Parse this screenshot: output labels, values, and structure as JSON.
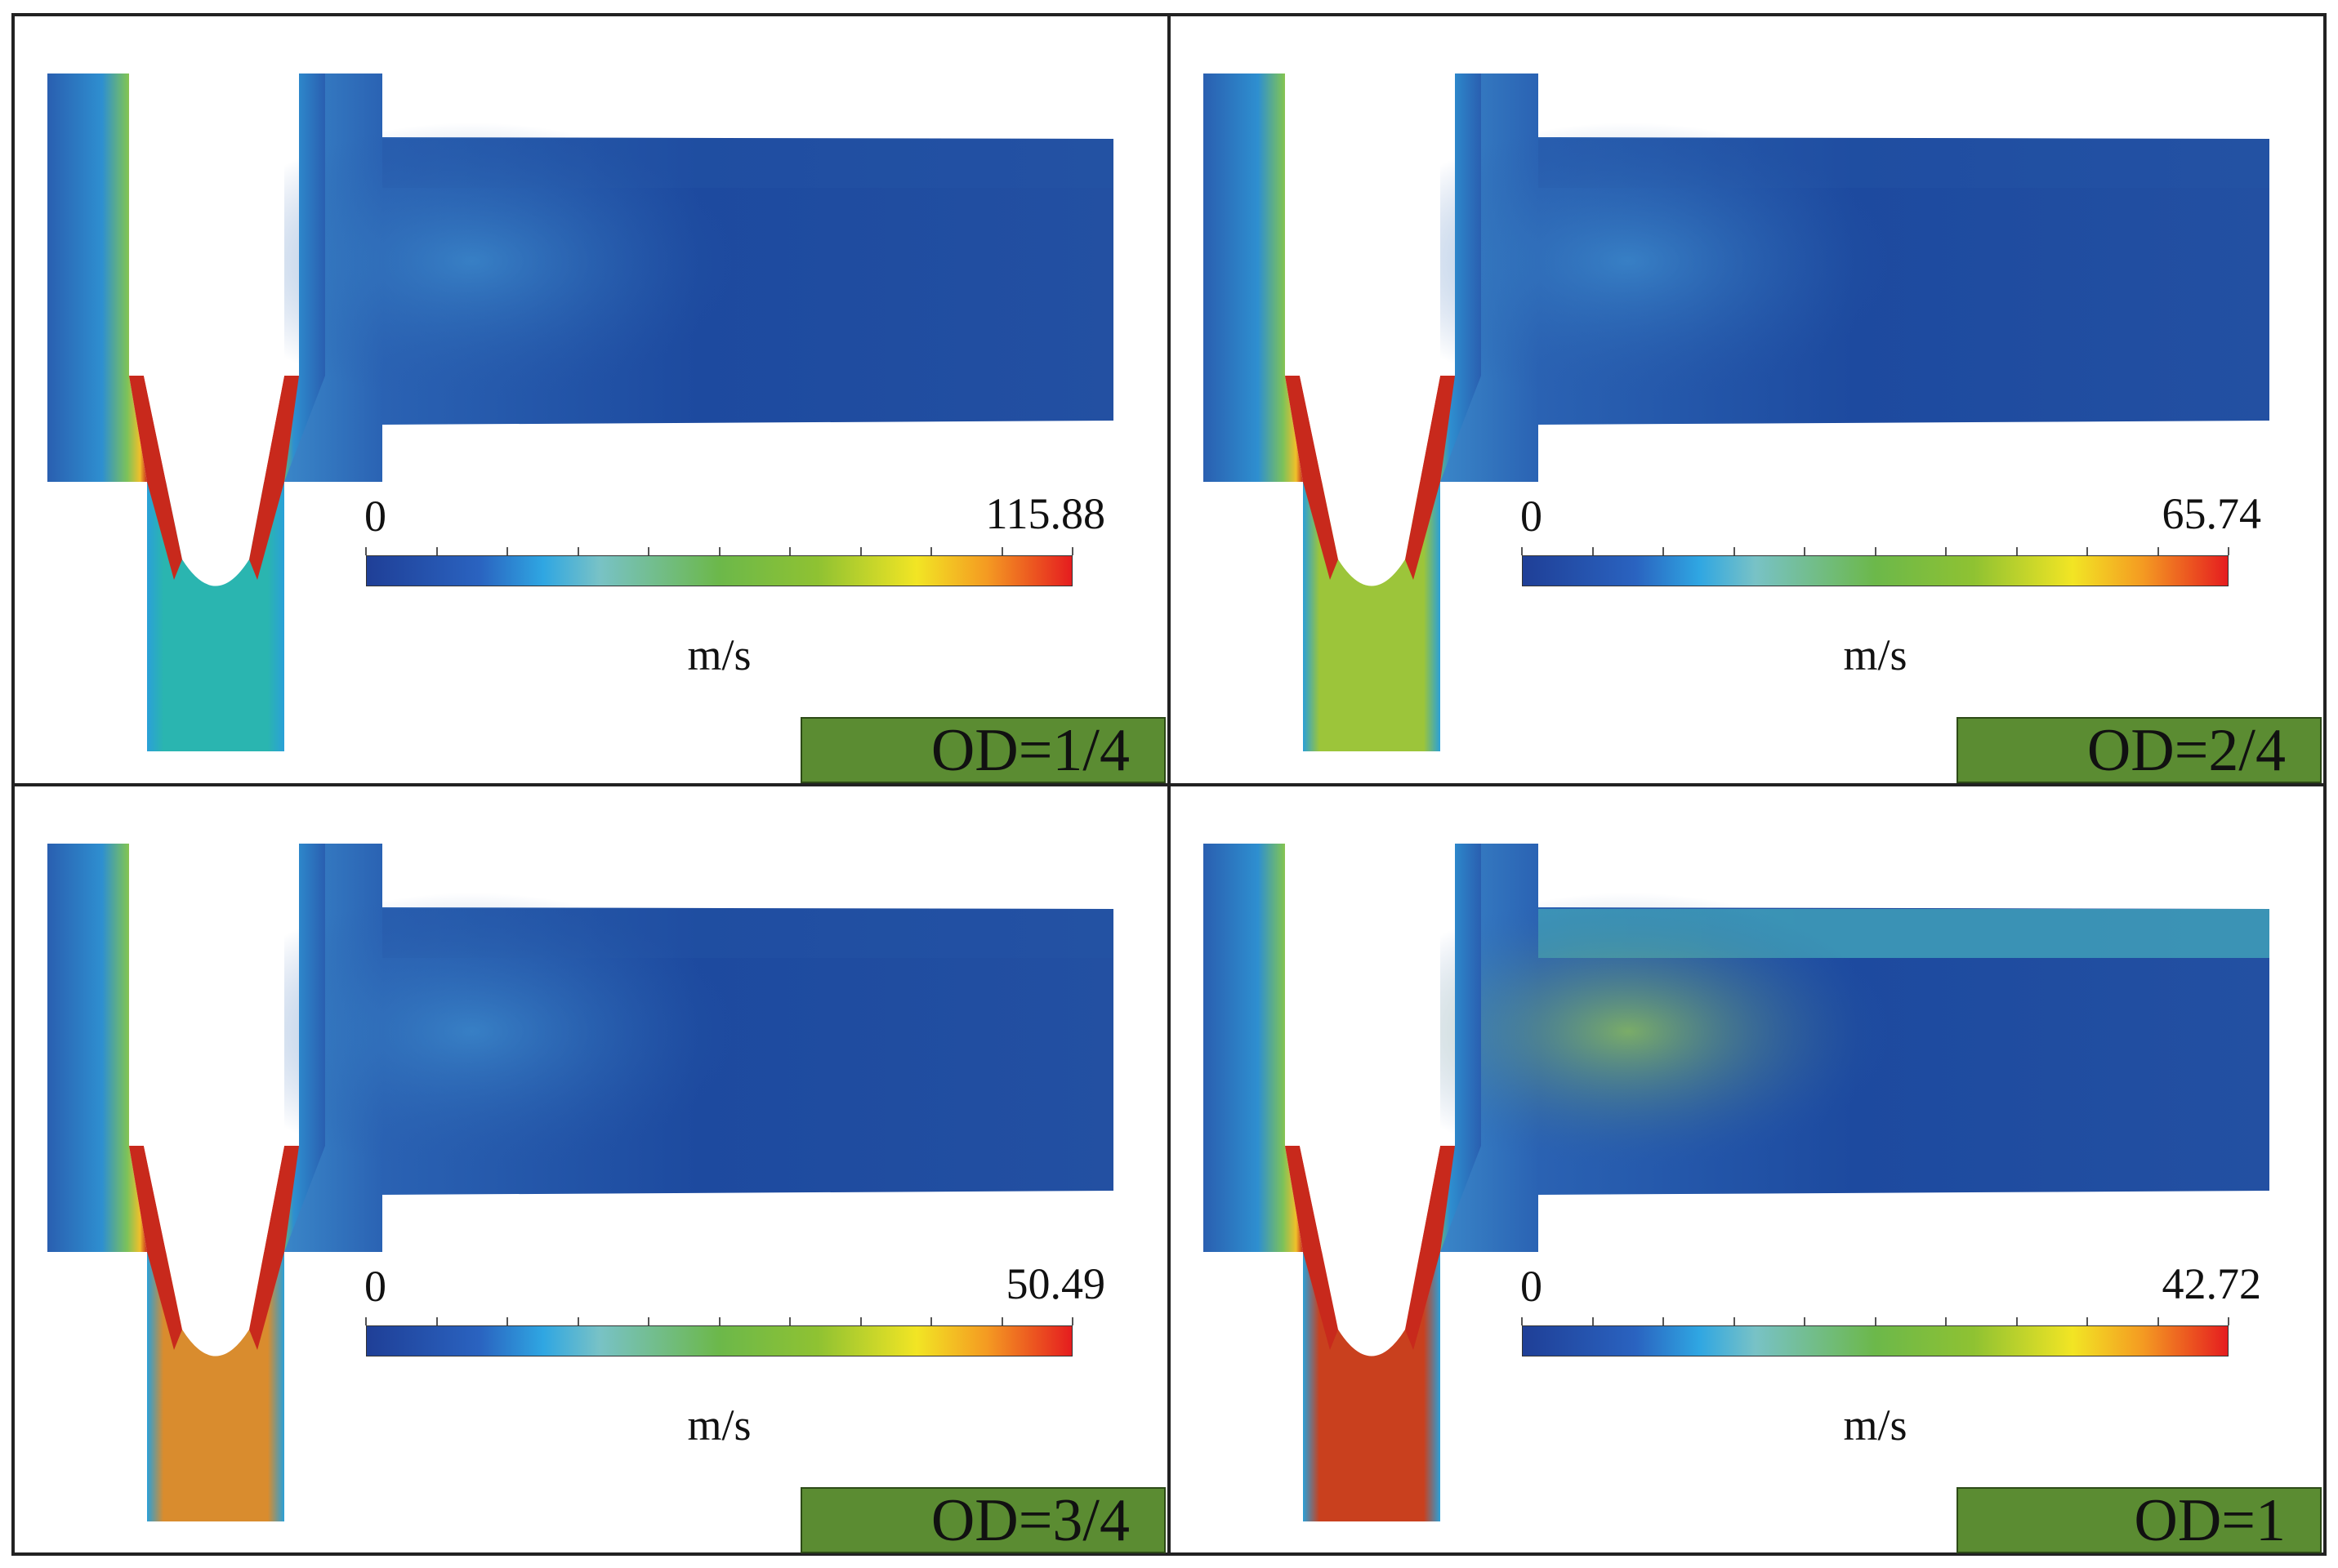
{
  "panels": [
    {
      "colorbar": {
        "min": "0",
        "max": "115.88",
        "unit": "m/s"
      },
      "label": "OD=1/4",
      "inlet_color": "#2ab5b0"
    },
    {
      "colorbar": {
        "min": "0",
        "max": "65.74",
        "unit": "m/s"
      },
      "label": "OD=2/4",
      "inlet_color": "#9cc53a"
    },
    {
      "colorbar": {
        "min": "0",
        "max": "50.49",
        "unit": "m/s"
      },
      "label": "OD=3/4",
      "inlet_color": "#d98c2e"
    },
    {
      "colorbar": {
        "min": "0",
        "max": "42.72",
        "unit": "m/s"
      },
      "label": "OD=1",
      "inlet_color": "#c9401e"
    }
  ],
  "colors": {
    "background_flow": "#1d4a9f",
    "high_velocity": "#c8291c",
    "badge": "#5b8c32"
  }
}
